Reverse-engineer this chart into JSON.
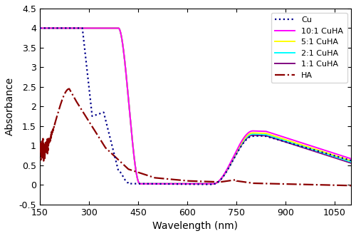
{
  "title": "",
  "xlabel": "Wavelength (nm)",
  "ylabel": "Absorbance",
  "xlim": [
    150,
    1100
  ],
  "ylim": [
    -0.5,
    4.5
  ],
  "xticks": [
    150,
    300,
    450,
    600,
    750,
    900,
    1050
  ],
  "xtick_labels": [
    "150",
    "300",
    "450",
    "600",
    "750",
    "900",
    "1050"
  ],
  "yticks": [
    -0.5,
    0.0,
    0.5,
    1.0,
    1.5,
    2.0,
    2.5,
    3.0,
    3.5,
    4.0,
    4.5
  ],
  "ytick_labels": [
    "-0.5",
    "0",
    "0.5",
    "1",
    "1.5",
    "2",
    "2.5",
    "3",
    "3.5",
    "4",
    "4.5"
  ],
  "series": [
    {
      "label": "Cu",
      "color": "#00008B",
      "linestyle": "dotted",
      "linewidth": 1.6
    },
    {
      "label": "10:1 CuHA",
      "color": "#FF00FF",
      "linestyle": "solid",
      "linewidth": 1.4
    },
    {
      "label": "5:1 CuHA",
      "color": "#FFFF00",
      "linestyle": "solid",
      "linewidth": 1.4
    },
    {
      "label": "2:1 CuHA",
      "color": "#00FFFF",
      "linestyle": "solid",
      "linewidth": 1.4
    },
    {
      "label": "1:1 CuHA",
      "color": "#800080",
      "linestyle": "solid",
      "linewidth": 1.4
    },
    {
      "label": "HA",
      "color": "#8B0000",
      "linestyle": "dashdot",
      "linewidth": 1.6
    }
  ],
  "figsize": [
    5.0,
    3.31
  ],
  "dpi": 100
}
